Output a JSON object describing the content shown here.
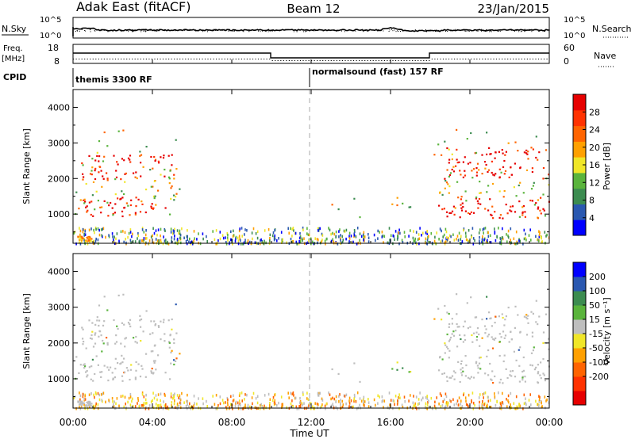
{
  "header": {
    "station": "Adak East (fitACF)",
    "beam": "Beam 12",
    "date": "23/Jan/2015"
  },
  "noise_panel": {
    "left_label": "N.Sky",
    "right_label": "N.Search",
    "ticks": [
      "10^5",
      "10^0"
    ]
  },
  "freq_panel": {
    "left_label_1": "Freq.",
    "left_label_2": "[MHz]",
    "left_ticks": [
      "18",
      "8"
    ],
    "right_label": "Nave",
    "right_ticks": [
      "60",
      "0"
    ],
    "cpid_label": "CPID",
    "modes": [
      "themis 3300 RF",
      "normalsound (fast) 157 RF"
    ]
  },
  "colors": {
    "power_scale": [
      "#0000ff",
      "#2a58b0",
      "#3c8c50",
      "#5ab43c",
      "#f0e628",
      "#ffa000",
      "#ff6400",
      "#ff3200",
      "#e60000"
    ],
    "velocity_scale": [
      "#e60000",
      "#ff3200",
      "#ff6400",
      "#ffa000",
      "#f0e628",
      "#bebebe",
      "#5ab43c",
      "#3c8c50",
      "#2a58b0",
      "#0000ff"
    ],
    "ground_scatter": "#bebebe"
  },
  "chart_data": [
    {
      "type": "heatmap",
      "name": "power",
      "ylabel": "Slant Range [km]",
      "ylim": [
        180,
        4500
      ],
      "yticks": [
        "4000",
        "3000",
        "2000",
        "1000"
      ],
      "xlim": [
        0,
        24
      ],
      "xlabel": "",
      "colorbar": {
        "label": "Power [dB]",
        "range": [
          0,
          32
        ],
        "ticks": [
          "28",
          "24",
          "20",
          "16",
          "12",
          "8",
          "4"
        ]
      }
    },
    {
      "type": "heatmap",
      "name": "velocity",
      "ylabel": "Slant Range [km]",
      "ylim": [
        180,
        4500
      ],
      "yticks": [
        "4000",
        "3000",
        "2000",
        "1000"
      ],
      "xlim": [
        0,
        24
      ],
      "xlabel": "Time UT",
      "xticks": [
        "00:00",
        "04:00",
        "08:00",
        "12:00",
        "16:00",
        "20:00",
        "00:00"
      ],
      "colorbar": {
        "label": "Velocity [m s⁻¹]",
        "ticks": [
          "200",
          "100",
          "50",
          "15",
          "-15",
          "-50",
          "-100",
          "-200"
        ]
      }
    }
  ]
}
